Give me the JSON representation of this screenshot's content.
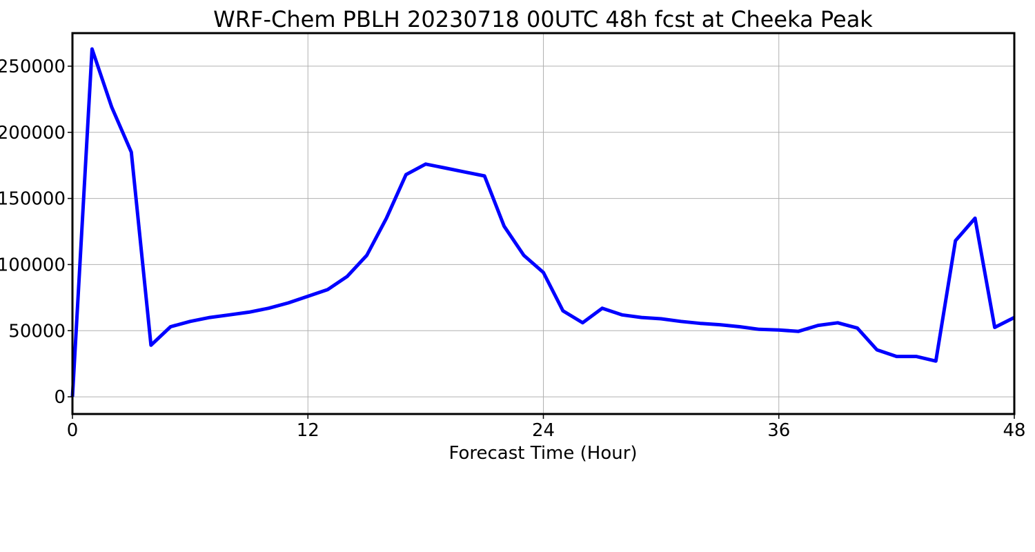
{
  "chart_data": {
    "type": "line",
    "title": "WRF-Chem PBLH  20230718 00UTC 48h fcst at Cheeka Peak",
    "xlabel": "Forecast Time (Hour)",
    "ylabel": "",
    "xlim": [
      0,
      48
    ],
    "ylim": [
      -13000,
      275000
    ],
    "xticks": [
      0,
      12,
      24,
      36,
      48
    ],
    "yticks": [
      0,
      50000,
      100000,
      150000,
      200000,
      250000
    ],
    "grid": true,
    "series": [
      {
        "color": "#0000ff",
        "x": [
          0,
          1,
          2,
          3,
          4,
          5,
          6,
          7,
          8,
          9,
          10,
          11,
          12,
          13,
          14,
          15,
          16,
          17,
          18,
          19,
          20,
          21,
          22,
          23,
          24,
          25,
          26,
          27,
          28,
          29,
          30,
          31,
          32,
          33,
          34,
          35,
          36,
          37,
          38,
          39,
          40,
          41,
          42,
          43,
          44,
          45,
          46,
          47,
          48
        ],
        "values": [
          0,
          263000,
          219000,
          185000,
          39000,
          53000,
          57000,
          60000,
          62000,
          64000,
          67000,
          71000,
          76000,
          81000,
          91000,
          107000,
          135000,
          168000,
          176000,
          173000,
          170000,
          167000,
          129000,
          107000,
          94000,
          65000,
          56000,
          67000,
          62000,
          60000,
          59000,
          57000,
          55500,
          54500,
          53000,
          51000,
          50500,
          49500,
          54000,
          56000,
          52000,
          35500,
          30500,
          30500,
          27000,
          118000,
          135000,
          52500,
          60000
        ]
      }
    ]
  }
}
